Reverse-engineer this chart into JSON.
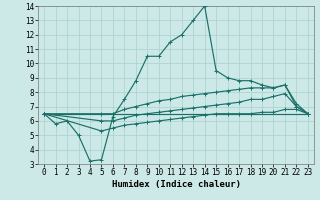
{
  "xlabel": "Humidex (Indice chaleur)",
  "xlim": [
    -0.5,
    23.5
  ],
  "ylim": [
    3,
    14
  ],
  "xticks": [
    0,
    1,
    2,
    3,
    4,
    5,
    6,
    7,
    8,
    9,
    10,
    11,
    12,
    13,
    14,
    15,
    16,
    17,
    18,
    19,
    20,
    21,
    22,
    23
  ],
  "yticks": [
    3,
    4,
    5,
    6,
    7,
    8,
    9,
    10,
    11,
    12,
    13,
    14
  ],
  "background_color": "#cce9e7",
  "grid_color": "#aed4d2",
  "line_color": "#1a7068",
  "line1": {
    "x": [
      0,
      1,
      2,
      3,
      4,
      5,
      6,
      7,
      8,
      9,
      10,
      11,
      12,
      13,
      14,
      15,
      16,
      17,
      18,
      19,
      20,
      21,
      22,
      23
    ],
    "y": [
      6.5,
      5.8,
      6.0,
      5.0,
      3.2,
      3.3,
      6.3,
      7.5,
      8.8,
      10.5,
      10.5,
      11.5,
      12.0,
      13.0,
      14.0,
      9.5,
      9.0,
      8.8,
      8.8,
      8.5,
      8.3,
      8.5,
      7.0,
      6.5
    ]
  },
  "line2": {
    "x": [
      0,
      6,
      23
    ],
    "y": [
      6.5,
      6.5,
      6.5
    ]
  },
  "line3": {
    "x": [
      0,
      5,
      6,
      7,
      8,
      9,
      10,
      11,
      12,
      13,
      14,
      15,
      16,
      17,
      18,
      19,
      20,
      21,
      22,
      23
    ],
    "y": [
      6.5,
      6.5,
      6.5,
      6.8,
      7.0,
      7.2,
      7.4,
      7.5,
      7.7,
      7.8,
      7.9,
      8.0,
      8.1,
      8.2,
      8.3,
      8.3,
      8.3,
      8.5,
      7.2,
      6.5
    ]
  },
  "line4": {
    "x": [
      0,
      5,
      6,
      7,
      8,
      9,
      10,
      11,
      12,
      13,
      14,
      15,
      16,
      17,
      18,
      19,
      20,
      21,
      22,
      23
    ],
    "y": [
      6.5,
      6.0,
      6.0,
      6.2,
      6.4,
      6.5,
      6.6,
      6.7,
      6.8,
      6.9,
      7.0,
      7.1,
      7.2,
      7.3,
      7.5,
      7.5,
      7.7,
      7.9,
      7.0,
      6.5
    ]
  },
  "line5": {
    "x": [
      0,
      5,
      6,
      7,
      8,
      9,
      10,
      11,
      12,
      13,
      14,
      15,
      16,
      17,
      18,
      19,
      20,
      21,
      22,
      23
    ],
    "y": [
      6.5,
      5.3,
      5.5,
      5.7,
      5.8,
      5.9,
      6.0,
      6.1,
      6.2,
      6.3,
      6.4,
      6.5,
      6.5,
      6.5,
      6.5,
      6.6,
      6.6,
      6.8,
      6.8,
      6.5
    ]
  },
  "tick_fontsize": 5.5,
  "label_fontsize": 6.5
}
